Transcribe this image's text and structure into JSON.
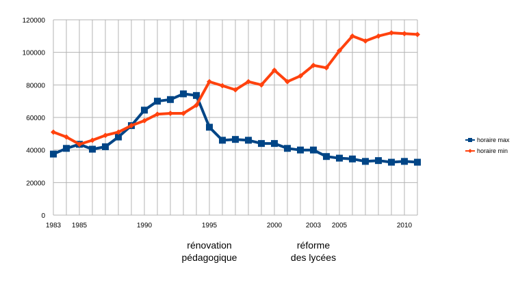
{
  "chart_data": {
    "type": "line",
    "title": "",
    "xlabel": "",
    "ylabel": "",
    "xlim": [
      1983,
      2011
    ],
    "ylim": [
      0,
      120000
    ],
    "y_ticks": [
      0,
      20000,
      40000,
      60000,
      80000,
      100000,
      120000
    ],
    "y_tick_labels": [
      "0",
      "20000",
      "40000",
      "60000",
      "80000",
      "100000",
      "120000"
    ],
    "x_tick_labels": [
      {
        "year": 1983,
        "label": "1983"
      },
      {
        "year": 1985,
        "label": "1985"
      },
      {
        "year": 1990,
        "label": "1990"
      },
      {
        "year": 1995,
        "label": "1995"
      },
      {
        "year": 2000,
        "label": "2000"
      },
      {
        "year": 2003,
        "label": "2003"
      },
      {
        "year": 2005,
        "label": "2005"
      },
      {
        "year": 2010,
        "label": "2010"
      }
    ],
    "grid": true,
    "legend_position": "right",
    "x": [
      1983,
      1984,
      1985,
      1986,
      1987,
      1988,
      1989,
      1990,
      1991,
      1992,
      1993,
      1994,
      1995,
      1996,
      1997,
      1998,
      1999,
      2000,
      2001,
      2002,
      2003,
      2004,
      2005,
      2006,
      2007,
      2008,
      2009,
      2010,
      2011
    ],
    "series": [
      {
        "name": "horaire max",
        "color": "#004586",
        "marker": "square",
        "values": [
          37500,
          41000,
          43500,
          40500,
          42000,
          48000,
          55000,
          64500,
          70000,
          71000,
          74500,
          73500,
          54000,
          46000,
          46500,
          46000,
          44000,
          44000,
          41000,
          40000,
          40000,
          36000,
          35000,
          34500,
          33000,
          33500,
          32500,
          33000,
          32500
        ]
      },
      {
        "name": "horaire min",
        "color": "#ff420e",
        "marker": "diamond",
        "values": [
          51000,
          48000,
          43500,
          46000,
          49000,
          51000,
          55000,
          58000,
          62000,
          62500,
          62500,
          67500,
          82000,
          79500,
          77000,
          82000,
          80000,
          89000,
          82000,
          85500,
          92000,
          90500,
          101000,
          110000,
          107000,
          110000,
          112000,
          111500,
          111000
        ]
      }
    ],
    "annotations": [
      {
        "year": 1995,
        "lines": [
          "rénovation",
          "pédagogique"
        ]
      },
      {
        "year": 2003,
        "lines": [
          "réforme",
          "des lycées"
        ]
      }
    ]
  }
}
